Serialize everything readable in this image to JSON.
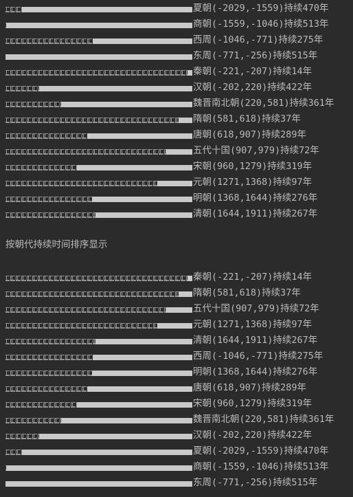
{
  "console": {
    "heading": "按朝代持续时间排序显示",
    "bar_max_years": 515,
    "bar_fill_color": "#c9c9c9",
    "bar_track_glyph": "□",
    "original_order": [
      {
        "text": "夏朝(-2029,-1559)持续470年",
        "years": 470
      },
      {
        "text": "商朝(-1559,-1046)持续513年",
        "years": 513
      },
      {
        "text": "西周(-1046,-771)持续275年",
        "years": 275
      },
      {
        "text": "东周(-771,-256)持续515年",
        "years": 515
      },
      {
        "text": "秦朝(-221,-207)持续14年",
        "years": 14
      },
      {
        "text": "汉朝(-202,220)持续422年",
        "years": 422
      },
      {
        "text": "魏晋南北朝(220,581)持续361年",
        "years": 361
      },
      {
        "text": "隋朝(581,618)持续37年",
        "years": 37
      },
      {
        "text": "唐朝(618,907)持续289年",
        "years": 289
      },
      {
        "text": "五代十国(907,979)持续72年",
        "years": 72
      },
      {
        "text": "宋朝(960,1279)持续319年",
        "years": 319
      },
      {
        "text": "元朝(1271,1368)持续97年",
        "years": 97
      },
      {
        "text": "明朝(1368,1644)持续276年",
        "years": 276
      },
      {
        "text": "清朝(1644,1911)持续267年",
        "years": 267
      }
    ],
    "sorted_order": [
      {
        "text": "秦朝(-221,-207)持续14年",
        "years": 14
      },
      {
        "text": "隋朝(581,618)持续37年",
        "years": 37
      },
      {
        "text": "五代十国(907,979)持续72年",
        "years": 72
      },
      {
        "text": "元朝(1271,1368)持续97年",
        "years": 97
      },
      {
        "text": "清朝(1644,1911)持续267年",
        "years": 267
      },
      {
        "text": "西周(-1046,-771)持续275年",
        "years": 275
      },
      {
        "text": "明朝(1368,1644)持续276年",
        "years": 276
      },
      {
        "text": "唐朝(618,907)持续289年",
        "years": 289
      },
      {
        "text": "宋朝(960,1279)持续319年",
        "years": 319
      },
      {
        "text": "魏晋南北朝(220,581)持续361年",
        "years": 361
      },
      {
        "text": "汉朝(-202,220)持续422年",
        "years": 422
      },
      {
        "text": "夏朝(-2029,-1559)持续470年",
        "years": 470
      },
      {
        "text": "商朝(-1559,-1046)持续513年",
        "years": 513
      },
      {
        "text": "东周(-771,-256)持续515年",
        "years": 515
      }
    ]
  }
}
